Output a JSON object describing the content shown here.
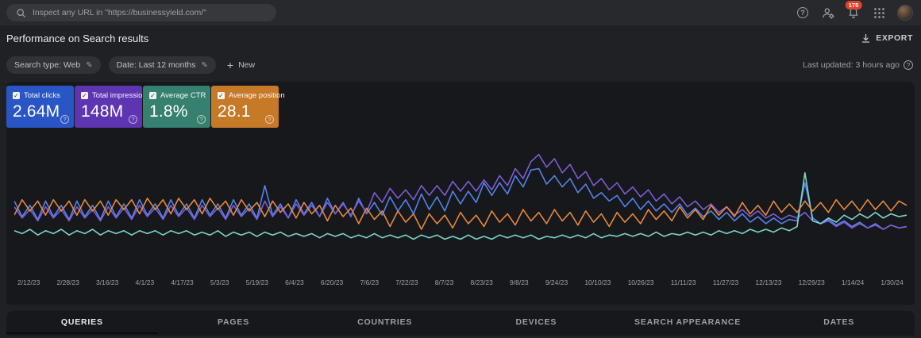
{
  "app_bar": {
    "search_placeholder": "Inspect any URL in \"https://businessyield.com/\"",
    "notification_count": "175"
  },
  "header": {
    "title": "Performance on Search results",
    "export_label": "EXPORT"
  },
  "filters": {
    "search_type_chip": "Search type: Web",
    "date_chip": "Date: Last 12 months",
    "new_label": "New",
    "last_updated": "Last updated: 3 hours ago"
  },
  "metric_cards": [
    {
      "label": "Total clicks",
      "value": "2.64M",
      "color": "#2a56c5",
      "checked": true
    },
    {
      "label": "Total impressions",
      "value": "148M",
      "color": "#5e35b1",
      "checked": true
    },
    {
      "label": "Average CTR",
      "value": "1.8%",
      "color": "#35806f",
      "checked": true
    },
    {
      "label": "Average position",
      "value": "28.1",
      "color": "#c67a28",
      "checked": true
    }
  ],
  "chart_data": {
    "type": "line",
    "title": "Performance on Search results",
    "xlabel": "",
    "ylabel": "",
    "grid": false,
    "legend_position": "none",
    "ylim": [
      0,
      100
    ],
    "note": "values are normalized 0-100 percent of plot height; four overlaid daily series over last 12 months",
    "x_tick_labels": [
      "2/12/23",
      "2/28/23",
      "3/16/23",
      "4/1/23",
      "4/17/23",
      "5/3/23",
      "5/19/23",
      "6/4/23",
      "6/20/23",
      "7/6/23",
      "7/22/23",
      "8/7/23",
      "8/23/23",
      "9/8/23",
      "9/24/23",
      "10/10/23",
      "10/26/23",
      "11/11/23",
      "11/27/23",
      "12/13/23",
      "12/29/23",
      "1/14/24",
      "1/30/24"
    ],
    "series": [
      {
        "name": "total-clicks",
        "color": "#5383ec",
        "values": [
          52,
          41,
          49,
          39,
          52,
          41,
          49,
          39,
          52,
          41,
          49,
          39,
          52,
          41,
          50,
          40,
          53,
          42,
          50,
          40,
          53,
          42,
          50,
          40,
          53,
          42,
          50,
          40,
          53,
          42,
          50,
          40,
          63,
          42,
          50,
          40,
          53,
          43,
          51,
          41,
          54,
          43,
          51,
          41,
          54,
          43,
          51,
          42,
          55,
          45,
          53,
          43,
          57,
          46,
          55,
          45,
          59,
          50,
          59,
          51,
          65,
          56,
          65,
          57,
          70,
          62,
          74,
          75,
          64,
          70,
          62,
          68,
          58,
          64,
          54,
          58,
          52,
          56,
          48,
          54,
          46,
          52,
          45,
          50,
          44,
          50,
          42,
          47,
          41,
          45,
          39,
          44,
          38,
          43,
          37,
          41,
          36,
          40,
          36,
          39,
          38,
          65,
          40,
          36,
          39,
          35,
          38,
          34,
          37,
          33,
          36,
          32,
          35,
          33,
          34
        ]
      },
      {
        "name": "total-impressions",
        "color": "#7c5cd6",
        "values": [
          48,
          40,
          46,
          38,
          48,
          40,
          46,
          38,
          48,
          40,
          46,
          38,
          48,
          40,
          47,
          39,
          49,
          41,
          47,
          39,
          49,
          41,
          47,
          39,
          49,
          41,
          47,
          39,
          49,
          41,
          47,
          39,
          52,
          41,
          48,
          40,
          50,
          42,
          49,
          41,
          51,
          43,
          50,
          42,
          52,
          44,
          58,
          51,
          61,
          54,
          60,
          53,
          63,
          56,
          63,
          56,
          66,
          59,
          66,
          59,
          67,
          60,
          70,
          63,
          75,
          68,
          80,
          85,
          76,
          82,
          72,
          78,
          68,
          73,
          63,
          68,
          60,
          65,
          57,
          62,
          55,
          60,
          52,
          57,
          50,
          55,
          48,
          52,
          46,
          50,
          44,
          48,
          42,
          46,
          41,
          45,
          40,
          43,
          39,
          42,
          40,
          44,
          38,
          36,
          38,
          34,
          37,
          33,
          36,
          33,
          35,
          32,
          35,
          33,
          34
        ]
      },
      {
        "name": "average-ctr",
        "color": "#7bd5c8",
        "values": [
          31,
          29,
          32,
          28,
          31,
          29,
          32,
          28,
          31,
          29,
          32,
          28,
          31,
          29,
          31,
          28,
          31,
          29,
          31,
          28,
          31,
          29,
          31,
          28,
          30,
          28,
          31,
          27,
          30,
          28,
          30,
          27,
          30,
          28,
          30,
          27,
          29,
          27,
          29,
          26,
          29,
          27,
          29,
          26,
          28,
          26,
          29,
          26,
          28,
          26,
          28,
          25,
          28,
          26,
          28,
          25,
          27,
          25,
          28,
          25,
          27,
          25,
          28,
          26,
          28,
          26,
          28,
          25,
          27,
          26,
          28,
          26,
          28,
          26,
          29,
          26,
          28,
          27,
          29,
          27,
          29,
          27,
          30,
          27,
          29,
          28,
          30,
          28,
          30,
          28,
          31,
          29,
          31,
          29,
          32,
          30,
          32,
          30,
          33,
          31,
          34,
          72,
          38,
          36,
          40,
          37,
          42,
          39,
          43,
          40,
          44,
          40,
          43,
          41,
          42
        ]
      },
      {
        "name": "average-position",
        "color": "#e8883d",
        "values": [
          42,
          53,
          45,
          52,
          42,
          53,
          45,
          52,
          42,
          53,
          45,
          52,
          42,
          53,
          46,
          53,
          43,
          54,
          46,
          53,
          43,
          54,
          46,
          53,
          43,
          54,
          46,
          52,
          42,
          53,
          45,
          51,
          41,
          52,
          44,
          50,
          40,
          51,
          43,
          49,
          38,
          49,
          41,
          47,
          36,
          47,
          39,
          45,
          34,
          45,
          37,
          43,
          32,
          43,
          36,
          42,
          33,
          44,
          36,
          42,
          34,
          45,
          37,
          43,
          35,
          46,
          38,
          44,
          36,
          46,
          38,
          44,
          35,
          45,
          37,
          43,
          34,
          44,
          37,
          43,
          36,
          46,
          39,
          45,
          38,
          48,
          40,
          46,
          39,
          49,
          42,
          48,
          41,
          51,
          43,
          49,
          42,
          52,
          44,
          50,
          44,
          52,
          45,
          51,
          44,
          53,
          46,
          52,
          45,
          53,
          46,
          52,
          45,
          52,
          49
        ]
      }
    ]
  },
  "tabs": {
    "items": [
      {
        "label": "QUERIES",
        "active": true
      },
      {
        "label": "PAGES",
        "active": false
      },
      {
        "label": "COUNTRIES",
        "active": false
      },
      {
        "label": "DEVICES",
        "active": false
      },
      {
        "label": "SEARCH APPEARANCE",
        "active": false
      },
      {
        "label": "DATES",
        "active": false
      }
    ]
  }
}
